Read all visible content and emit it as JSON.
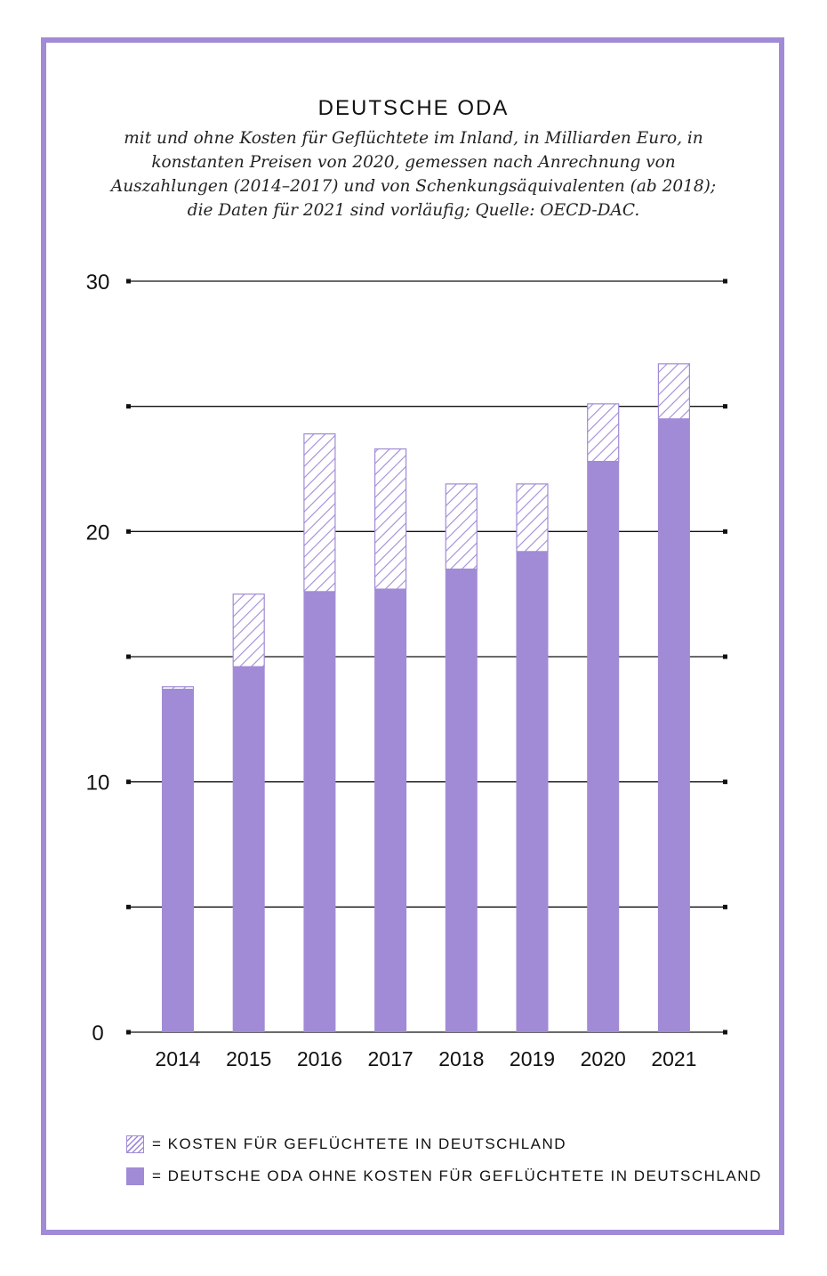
{
  "colors": {
    "frame": "#a18bd6",
    "bar": "#a18bd6",
    "hatch": "#a18bd6",
    "text": "#111111"
  },
  "header": {
    "title": "DEUTSCHE ODA",
    "subtitle": "mit und ohne Kosten für Geflüchtete im Inland, in Milliarden Euro, in konstanten Preisen von 2020, gemessen nach Anrechnung von Auszahlungen (2014–2017) und von Schenkungsäquivalenten (ab 2018); die Daten für 2021 sind vorläufig; Quelle: OECD-DAC."
  },
  "legend": {
    "hatched": "= KOSTEN FÜR GEFLÜCHTETE IN DEUTSCHLAND",
    "solid": "= DEUTSCHE ODA OHNE KOSTEN FÜR GEFLÜCHTETE IN DEUTSCHLAND"
  },
  "chart_data": {
    "type": "bar",
    "stacked": true,
    "title": "DEUTSCHE ODA",
    "categories": [
      "2014",
      "2015",
      "2016",
      "2017",
      "2018",
      "2019",
      "2020",
      "2021"
    ],
    "series": [
      {
        "name": "DEUTSCHE ODA OHNE KOSTEN FÜR GEFLÜCHTETE IN DEUTSCHLAND",
        "style": "solid",
        "values": [
          13.7,
          14.6,
          17.6,
          17.7,
          18.5,
          19.2,
          22.8,
          24.5
        ]
      },
      {
        "name": "KOSTEN FÜR GEFLÜCHTETE IN DEUTSCHLAND",
        "style": "hatched",
        "values": [
          0.1,
          2.9,
          6.3,
          5.6,
          3.4,
          2.7,
          2.3,
          2.2
        ]
      }
    ],
    "ylim": [
      0,
      30
    ],
    "yticks": [
      0,
      10,
      20,
      30
    ],
    "gridlines": [
      0,
      5,
      10,
      15,
      20,
      25,
      30
    ],
    "grid": true,
    "legend_position": "bottom-left"
  }
}
